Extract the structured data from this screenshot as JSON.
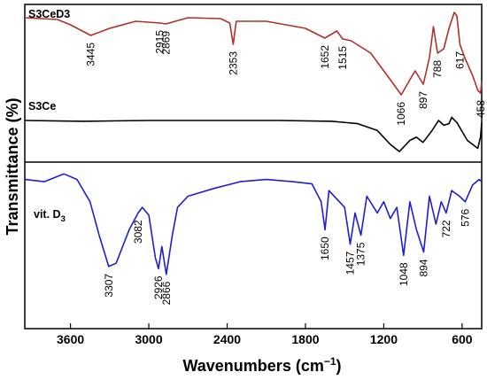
{
  "chart_data": {
    "type": "line",
    "xlabel_main": "Wavenumbers (cm",
    "xlabel_sup": "−1",
    "xlabel_close": ")",
    "ylabel": "Transmittance (%)",
    "x_reversed": true,
    "xlim": [
      3950,
      450
    ],
    "x_ticks": [
      3600,
      3000,
      2400,
      1800,
      1200,
      600
    ],
    "grid": false,
    "legend": "none",
    "panels": [
      {
        "name": "top",
        "series_names": [
          "S3CeD3",
          "S3Ce"
        ]
      },
      {
        "name": "bottom",
        "series_names": [
          "vit. D3"
        ]
      }
    ],
    "series": [
      {
        "name": "S3CeD3",
        "color": "#b0302a",
        "panel": "top",
        "label_text": "S3CeD3",
        "peaks": [
          3445,
          2915,
          2869,
          2353,
          1652,
          1515,
          1066,
          897,
          788,
          617,
          458
        ],
        "profile": [
          [
            3950,
            0.1
          ],
          [
            3700,
            0.12
          ],
          [
            3600,
            0.18
          ],
          [
            3445,
            0.3
          ],
          [
            3300,
            0.22
          ],
          [
            3100,
            0.14
          ],
          [
            2915,
            0.16
          ],
          [
            2869,
            0.17
          ],
          [
            2700,
            0.1
          ],
          [
            2450,
            0.11
          ],
          [
            2380,
            0.16
          ],
          [
            2353,
            0.4
          ],
          [
            2330,
            0.14
          ],
          [
            2100,
            0.14
          ],
          [
            1800,
            0.22
          ],
          [
            1652,
            0.33
          ],
          [
            1560,
            0.25
          ],
          [
            1515,
            0.34
          ],
          [
            1450,
            0.36
          ],
          [
            1300,
            0.5
          ],
          [
            1150,
            0.8
          ],
          [
            1066,
            0.97
          ],
          [
            1000,
            0.8
          ],
          [
            960,
            0.7
          ],
          [
            897,
            0.85
          ],
          [
            850,
            0.55
          ],
          [
            820,
            0.2
          ],
          [
            788,
            0.5
          ],
          [
            740,
            0.45
          ],
          [
            700,
            0.22
          ],
          [
            660,
            0.04
          ],
          [
            640,
            0.08
          ],
          [
            617,
            0.4
          ],
          [
            580,
            0.55
          ],
          [
            520,
            0.75
          ],
          [
            480,
            0.92
          ],
          [
            458,
            0.95
          ],
          [
            450,
            0.82
          ]
        ]
      },
      {
        "name": "S3Ce",
        "color": "#000000",
        "panel": "top",
        "label_text": "S3Ce",
        "profile": [
          [
            3950,
            0.2
          ],
          [
            3500,
            0.22
          ],
          [
            3000,
            0.2
          ],
          [
            2500,
            0.2
          ],
          [
            2000,
            0.2
          ],
          [
            1600,
            0.22
          ],
          [
            1400,
            0.28
          ],
          [
            1250,
            0.45
          ],
          [
            1150,
            0.8
          ],
          [
            1080,
            0.98
          ],
          [
            1000,
            0.7
          ],
          [
            950,
            0.62
          ],
          [
            900,
            0.75
          ],
          [
            830,
            0.45
          ],
          [
            780,
            0.2
          ],
          [
            740,
            0.32
          ],
          [
            700,
            0.28
          ],
          [
            680,
            0.12
          ],
          [
            640,
            0.25
          ],
          [
            560,
            0.7
          ],
          [
            520,
            0.8
          ],
          [
            480,
            0.9
          ],
          [
            458,
            0.6
          ],
          [
            450,
            0.25
          ]
        ]
      },
      {
        "name": "vit. D3",
        "color": "#1f1fd1",
        "panel": "bottom",
        "label_main": "vit. D",
        "label_sub": "3",
        "peaks": [
          3307,
          3082,
          2926,
          2866,
          1650,
          1457,
          1375,
          1048,
          894,
          722,
          576
        ],
        "profile": [
          [
            3950,
            0.1
          ],
          [
            3800,
            0.12
          ],
          [
            3650,
            0.05
          ],
          [
            3550,
            0.1
          ],
          [
            3450,
            0.3
          ],
          [
            3380,
            0.6
          ],
          [
            3307,
            0.88
          ],
          [
            3250,
            0.85
          ],
          [
            3150,
            0.55
          ],
          [
            3082,
            0.4
          ],
          [
            3050,
            0.35
          ],
          [
            3000,
            0.42
          ],
          [
            2950,
            0.8
          ],
          [
            2926,
            0.9
          ],
          [
            2900,
            0.7
          ],
          [
            2866,
            0.95
          ],
          [
            2820,
            0.6
          ],
          [
            2780,
            0.35
          ],
          [
            2700,
            0.25
          ],
          [
            2500,
            0.18
          ],
          [
            2300,
            0.12
          ],
          [
            2100,
            0.1
          ],
          [
            1900,
            0.12
          ],
          [
            1750,
            0.14
          ],
          [
            1680,
            0.3
          ],
          [
            1650,
            0.55
          ],
          [
            1620,
            0.2
          ],
          [
            1500,
            0.35
          ],
          [
            1457,
            0.68
          ],
          [
            1420,
            0.4
          ],
          [
            1375,
            0.6
          ],
          [
            1330,
            0.25
          ],
          [
            1250,
            0.4
          ],
          [
            1200,
            0.3
          ],
          [
            1150,
            0.45
          ],
          [
            1100,
            0.35
          ],
          [
            1048,
            0.78
          ],
          [
            1000,
            0.3
          ],
          [
            950,
            0.55
          ],
          [
            894,
            0.75
          ],
          [
            850,
            0.25
          ],
          [
            800,
            0.5
          ],
          [
            760,
            0.3
          ],
          [
            722,
            0.4
          ],
          [
            680,
            0.2
          ],
          [
            620,
            0.25
          ],
          [
            576,
            0.3
          ],
          [
            520,
            0.15
          ],
          [
            470,
            0.1
          ],
          [
            450,
            0.12
          ]
        ]
      }
    ]
  }
}
